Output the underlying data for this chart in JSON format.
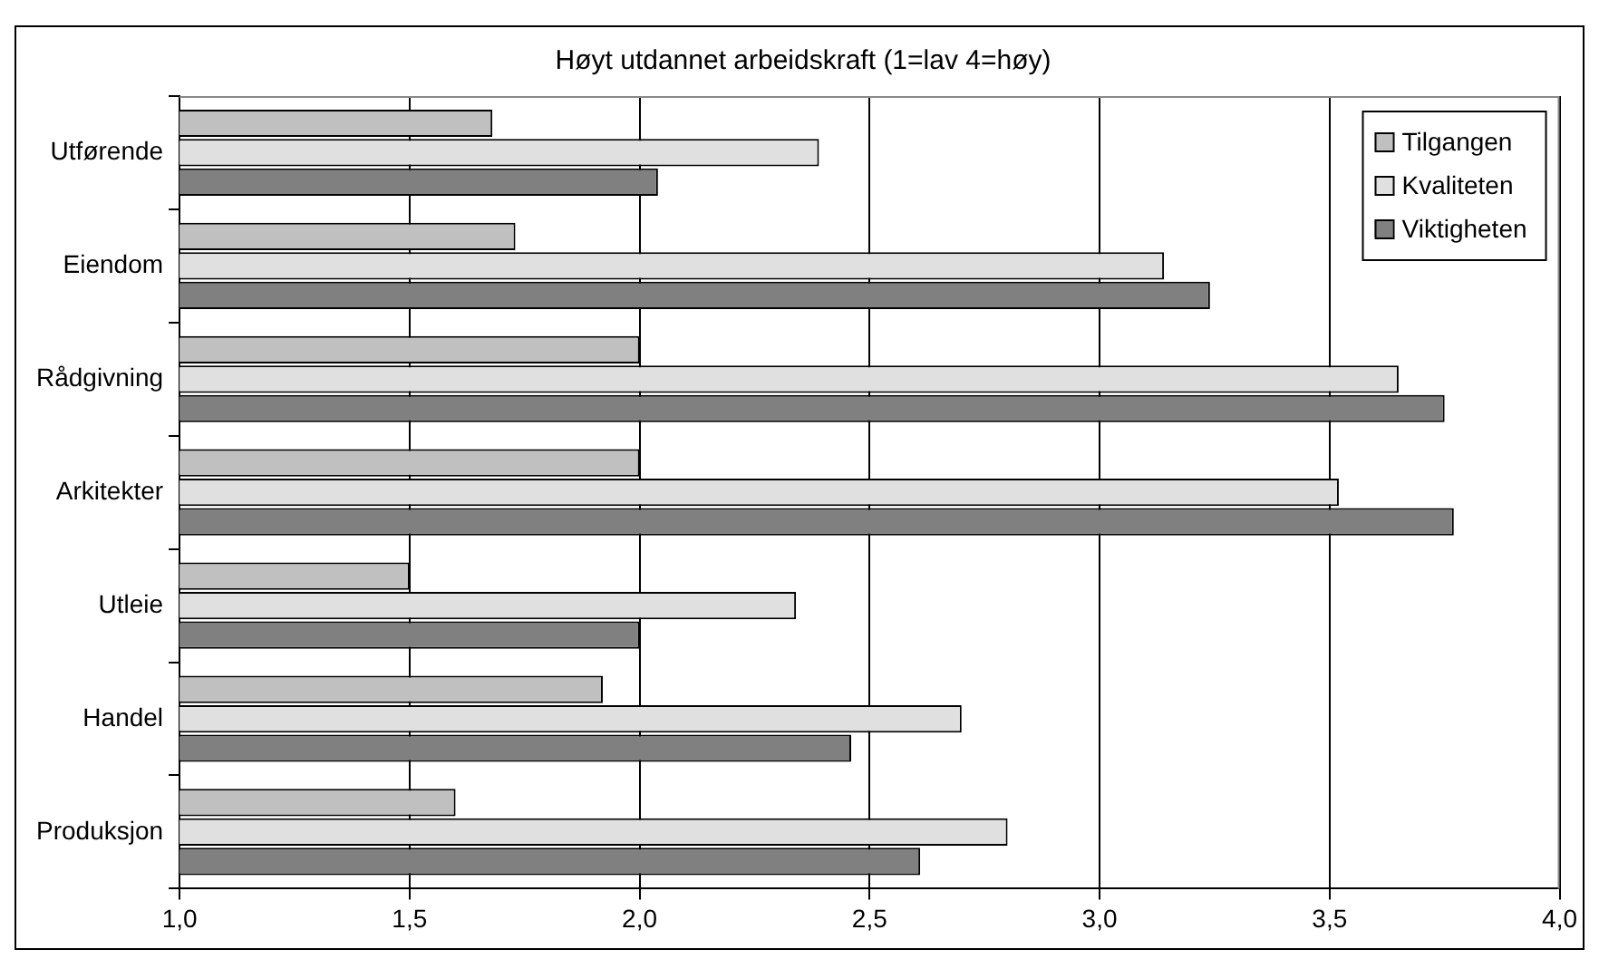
{
  "chart_data": {
    "type": "bar",
    "orientation": "horizontal",
    "title": "Høyt utdannet arbeidskraft (1=lav 4=høy)",
    "categories": [
      "Utførende",
      "Eiendom",
      "Rådgivning",
      "Arkitekter",
      "Utleie",
      "Handel",
      "Produksjon"
    ],
    "series": [
      {
        "name": "Tilgangen",
        "color": "#c0c0c0",
        "values": [
          1.68,
          1.73,
          2.0,
          2.0,
          1.5,
          1.92,
          1.6
        ]
      },
      {
        "name": "Kvaliteten",
        "color": "#e0e0e0",
        "values": [
          2.39,
          3.14,
          3.65,
          3.52,
          2.34,
          2.7,
          2.8
        ]
      },
      {
        "name": "Viktigheten",
        "color": "#808080",
        "values": [
          2.04,
          3.24,
          3.75,
          3.77,
          2.0,
          2.46,
          2.61
        ]
      }
    ],
    "xlim": [
      1,
      4
    ],
    "xticks": [
      {
        "value": 1,
        "label": "1,0"
      },
      {
        "value": 1.5,
        "label": "1,5"
      },
      {
        "value": 2,
        "label": "2,0"
      },
      {
        "value": 2.5,
        "label": "2,5"
      },
      {
        "value": 3,
        "label": "3,0"
      },
      {
        "value": 3.5,
        "label": "3,5"
      },
      {
        "value": 4,
        "label": "4,0"
      }
    ],
    "grid": "x",
    "legend": "top right"
  }
}
